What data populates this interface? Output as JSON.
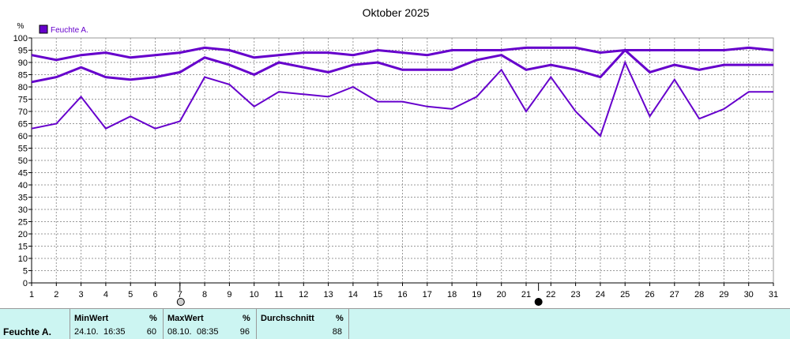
{
  "chart_data": {
    "type": "line",
    "title": "Oktober 2025",
    "ylabel": "%",
    "ylim": [
      0,
      100
    ],
    "yticks": [
      0,
      5,
      10,
      15,
      20,
      25,
      30,
      35,
      40,
      45,
      50,
      55,
      60,
      65,
      70,
      75,
      80,
      85,
      90,
      95,
      100
    ],
    "x": [
      1,
      2,
      3,
      4,
      5,
      6,
      7,
      8,
      9,
      10,
      11,
      12,
      13,
      14,
      15,
      16,
      17,
      18,
      19,
      20,
      21,
      22,
      23,
      24,
      25,
      26,
      27,
      28,
      29,
      30,
      31
    ],
    "legend": {
      "label": "Feuchte A.",
      "color": "#6600cc",
      "position": "top-left"
    },
    "grid": true,
    "series": [
      {
        "role": "max",
        "values": [
          93,
          91,
          93,
          94,
          92,
          93,
          94,
          96,
          95,
          92,
          93,
          94,
          94,
          93,
          95,
          94,
          93,
          95,
          95,
          95,
          96,
          96,
          96,
          94,
          95,
          95,
          95,
          95,
          95,
          96,
          95
        ]
      },
      {
        "role": "avg",
        "values": [
          82,
          84,
          88,
          84,
          83,
          84,
          86,
          92,
          89,
          85,
          90,
          88,
          86,
          89,
          90,
          87,
          87,
          87,
          91,
          93,
          87,
          89,
          87,
          84,
          95,
          86,
          89,
          87,
          89,
          89,
          89
        ]
      },
      {
        "role": "min",
        "values": [
          63,
          65,
          76,
          63,
          68,
          63,
          66,
          84,
          81,
          72,
          78,
          77,
          76,
          80,
          74,
          74,
          72,
          71,
          76,
          87,
          70,
          84,
          70,
          60,
          90,
          68,
          83,
          67,
          71,
          78,
          78
        ]
      }
    ],
    "markers": [
      {
        "x": 7,
        "type": "open-circle"
      },
      {
        "x": 21.5,
        "type": "filled-circle"
      }
    ]
  },
  "panel": {
    "row_label": "Feuchte A.",
    "min": {
      "header": "MinWert",
      "unit": "%",
      "date": "24.10.",
      "time": "16:35",
      "value": "60"
    },
    "max": {
      "header": "MaxWert",
      "unit": "%",
      "date": "08.10.",
      "time": "08:35",
      "value": "96"
    },
    "avg": {
      "header": "Durchschnitt",
      "unit": "%",
      "value": "88"
    }
  },
  "colors": {
    "line": "#6600cc",
    "grid": "#9a9a9a",
    "axis_text": "#000000",
    "panel_bg": "#ccf5f2"
  }
}
